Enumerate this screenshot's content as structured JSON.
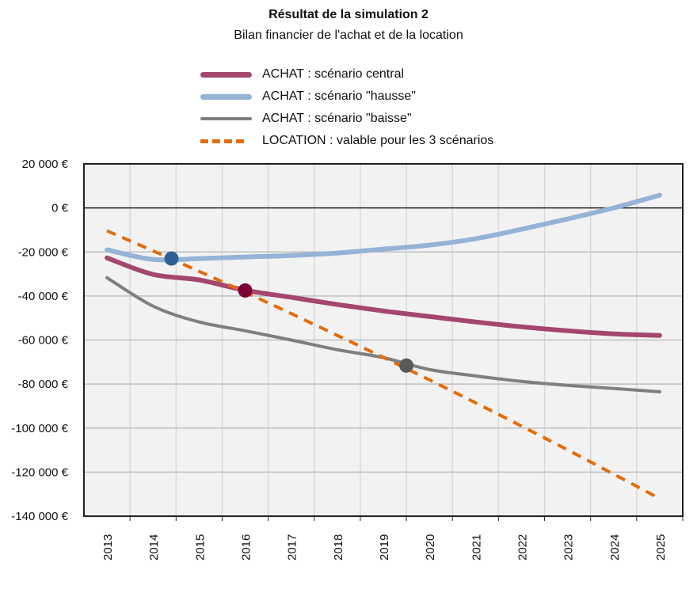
{
  "chart_data": {
    "type": "line",
    "title": "Résultat de la simulation 2",
    "subtitle": "Bilan financier de l'achat et de la location",
    "xlabel": "",
    "ylabel": "",
    "categories": [
      "2013",
      "2014",
      "2015",
      "2016",
      "2017",
      "2018",
      "2019",
      "2020",
      "2021",
      "2022",
      "2023",
      "2024",
      "2025"
    ],
    "ylim": [
      -140000,
      20000
    ],
    "yticks": [
      20000,
      0,
      -20000,
      -40000,
      -60000,
      -80000,
      -100000,
      -120000,
      -140000
    ],
    "ytick_labels": [
      "20 000 €",
      "0 €",
      "-20 000 €",
      "-40 000 €",
      "-60 000 €",
      "-80 000 €",
      "-100 000 €",
      "-120 000 €",
      "-140 000 €"
    ],
    "grid": true,
    "legend_position": "top",
    "series": [
      {
        "name": "ACHAT : scénario central",
        "color": "#a4476e",
        "style": "solid-thick",
        "values": [
          -22700,
          -30200,
          -32700,
          -37400,
          -40600,
          -43900,
          -46800,
          -49300,
          -51800,
          -54000,
          -55800,
          -57200,
          -57900
        ]
      },
      {
        "name": "ACHAT : scénario \"hausse\"",
        "color": "#95b3d7",
        "style": "solid-thick",
        "values": [
          -19000,
          -23400,
          -23000,
          -22300,
          -21600,
          -20500,
          -18700,
          -16900,
          -14000,
          -9700,
          -5000,
          0,
          5800
        ]
      },
      {
        "name": "ACHAT : scénario \"baisse\"",
        "color": "#7f7f7f",
        "style": "solid",
        "values": [
          -31700,
          -44600,
          -51800,
          -55800,
          -60000,
          -64400,
          -68000,
          -73400,
          -76300,
          -78800,
          -80600,
          -82000,
          -83500
        ]
      },
      {
        "name": "LOCATION : valable pour les 3 scénarios",
        "color": "#e46c0a",
        "style": "dashed",
        "values": [
          -10400,
          -19500,
          -28800,
          -38300,
          -48000,
          -57900,
          -67900,
          -78100,
          -88500,
          -99100,
          -109900,
          -120900,
          -132000
        ]
      }
    ],
    "intersections": [
      {
        "x": 2014.4,
        "y": -23000,
        "color": "#2e5f95"
      },
      {
        "x": 2016.0,
        "y": -37500,
        "color": "#7a0038"
      },
      {
        "x": 2019.5,
        "y": -71600,
        "color": "#595959"
      }
    ]
  }
}
